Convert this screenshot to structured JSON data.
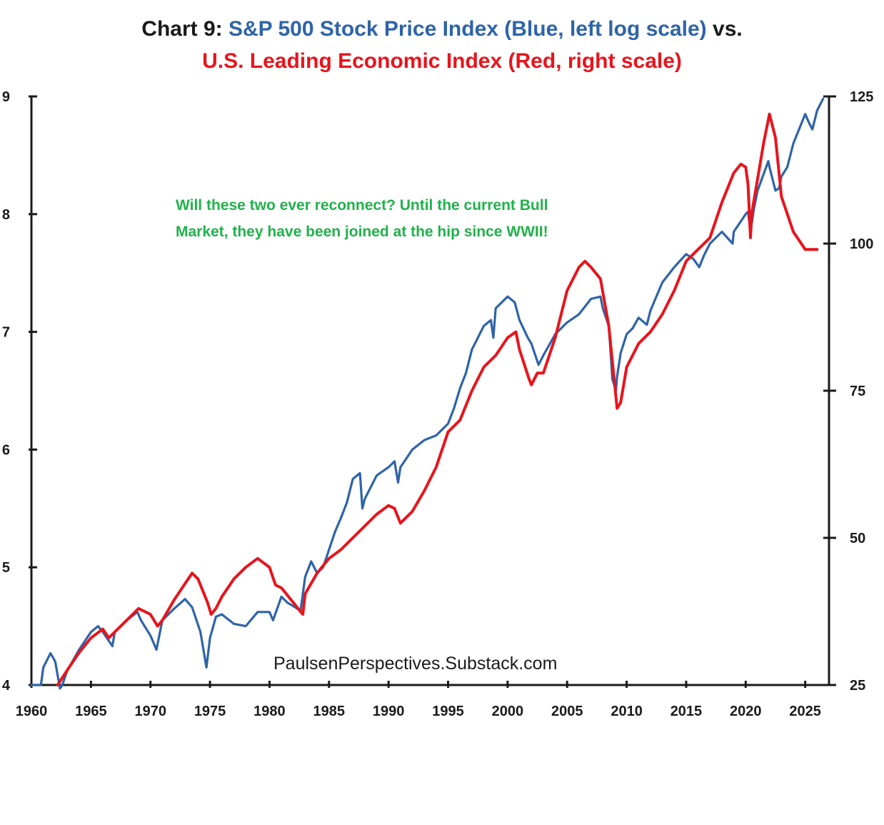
{
  "header": {
    "title_prefix": "Chart 9: ",
    "title_blue": "S&P 500 Stock Price Index (Blue, left log scale)",
    "title_suffix": " vs.",
    "title_red": "U.S. Leading Economic Index (Red, right scale)"
  },
  "annotation": {
    "line1": "Will these two ever reconnect?   Until the current Bull",
    "line2": "Market, they have been joined at the hip since WWII!"
  },
  "source": "PaulsenPerspectives.Substack.com",
  "colors": {
    "sp500": "#2e64a8",
    "lei": "#e8141c",
    "annotation": "#1fb24a",
    "axis": "#1a1a1a"
  },
  "chart_data": {
    "type": "line",
    "x_ticks": [
      "1960",
      "1965",
      "1970",
      "1975",
      "1980",
      "1985",
      "1990",
      "1995",
      "2000",
      "2005",
      "2010",
      "2015",
      "2020",
      "2025"
    ],
    "xlim": [
      1960,
      2027
    ],
    "y_left": {
      "ticks": [
        "4",
        "5",
        "6",
        "7",
        "8",
        "9"
      ],
      "lim": [
        4,
        9
      ],
      "scale": "log"
    },
    "y_right": {
      "ticks": [
        "25",
        "50",
        "75",
        "100",
        "125"
      ],
      "lim": [
        25,
        125
      ]
    },
    "grid": false,
    "series": [
      {
        "axis": "left",
        "color": "#2e64a8",
        "x": [
          1960,
          1960.8,
          1961,
          1961.6,
          1962,
          1962.4,
          1962.6,
          1963,
          1964,
          1965,
          1965.6,
          1966,
          1966.8,
          1967,
          1968,
          1968.9,
          1969.2,
          1970,
          1970.5,
          1970.9,
          1971,
          1972,
          1972.9,
          1973.5,
          1974.2,
          1974.7,
          1975,
          1975.5,
          1976,
          1977,
          1978,
          1979,
          1980,
          1980.3,
          1981,
          1981.5,
          1982,
          1982.6,
          1983,
          1983.5,
          1984,
          1984.5,
          1985,
          1985.5,
          1986,
          1986.5,
          1987,
          1987.6,
          1987.8,
          1988,
          1989,
          1990,
          1990.5,
          1990.8,
          1991,
          1992,
          1993,
          1994,
          1995,
          1995.5,
          1996,
          1996.5,
          1997,
          1998,
          1998.6,
          1998.8,
          1999,
          2000,
          2000.6,
          2001,
          2001.7,
          2002,
          2002.6,
          2003,
          2004,
          2005,
          2006,
          2007,
          2007.8,
          2008,
          2008.5,
          2008.8,
          2009.1,
          2009.2,
          2009.5,
          2010,
          2010.5,
          2011,
          2011.7,
          2012,
          2013,
          2014,
          2015,
          2015.6,
          2016.1,
          2016.5,
          2017,
          2018,
          2018.9,
          2019,
          2020,
          2020.2,
          2020.4,
          2020.7,
          2021,
          2021.9,
          2022,
          2022.5,
          2022.8,
          2023,
          2023.5,
          2024,
          2025,
          2025.3,
          2025.6,
          2026,
          2026.5
        ],
        "values": [
          4.0,
          4.0,
          4.15,
          4.27,
          4.2,
          3.97,
          4.0,
          4.12,
          4.3,
          4.45,
          4.5,
          4.45,
          4.33,
          4.45,
          4.55,
          4.62,
          4.55,
          4.42,
          4.3,
          4.5,
          4.55,
          4.65,
          4.73,
          4.66,
          4.45,
          4.15,
          4.4,
          4.58,
          4.6,
          4.52,
          4.5,
          4.62,
          4.62,
          4.55,
          4.75,
          4.7,
          4.67,
          4.63,
          4.92,
          5.05,
          4.95,
          5.0,
          5.15,
          5.3,
          5.42,
          5.55,
          5.75,
          5.8,
          5.5,
          5.58,
          5.78,
          5.85,
          5.9,
          5.72,
          5.85,
          6.0,
          6.08,
          6.12,
          6.22,
          6.35,
          6.52,
          6.65,
          6.85,
          7.05,
          7.1,
          6.95,
          7.2,
          7.3,
          7.25,
          7.1,
          6.95,
          6.9,
          6.72,
          6.8,
          6.98,
          7.08,
          7.15,
          7.28,
          7.3,
          7.2,
          7.05,
          6.6,
          6.5,
          6.62,
          6.82,
          6.98,
          7.03,
          7.12,
          7.06,
          7.18,
          7.42,
          7.55,
          7.66,
          7.62,
          7.55,
          7.65,
          7.75,
          7.85,
          7.75,
          7.85,
          8.0,
          8.02,
          7.85,
          8.05,
          8.2,
          8.45,
          8.4,
          8.2,
          8.22,
          8.32,
          8.4,
          8.6,
          8.85,
          8.78,
          8.72,
          8.88,
          8.98
        ]
      },
      {
        "axis": "right",
        "color": "#e8141c",
        "x": [
          1962.2,
          1963,
          1964,
          1965,
          1966,
          1966.5,
          1967,
          1968,
          1969,
          1970,
          1970.6,
          1971,
          1972,
          1973,
          1973.5,
          1974,
          1974.8,
          1975.1,
          1975.5,
          1976,
          1977,
          1978,
          1979,
          1980,
          1980.5,
          1981,
          1982,
          1982.8,
          1983,
          1984,
          1985,
          1986,
          1987,
          1988,
          1989,
          1990,
          1990.5,
          1991,
          1992,
          1993,
          1994,
          1995,
          1996,
          1997,
          1998,
          1999,
          2000,
          2000.7,
          2001,
          2001.8,
          2002,
          2002.5,
          2003,
          2004,
          2005,
          2006,
          2006.5,
          2007,
          2007.8,
          2008.5,
          2009.2,
          2009.5,
          2010,
          2011,
          2012,
          2013,
          2014,
          2015,
          2016,
          2017,
          2018,
          2019,
          2019.6,
          2020,
          2020.2,
          2020.4,
          2020.5,
          2021,
          2021.5,
          2022,
          2022.5,
          2023,
          2024,
          2025,
          2026
        ],
        "values": [
          25,
          27.5,
          30.5,
          33,
          34.5,
          33,
          34,
          36,
          38,
          37,
          35,
          36,
          39.5,
          42.5,
          44,
          43,
          39,
          37,
          38,
          40,
          43,
          45,
          46.5,
          45,
          42,
          41.5,
          39,
          37,
          40.5,
          44,
          46.5,
          48,
          50,
          52,
          54,
          55.5,
          55,
          52.5,
          54.5,
          58,
          62,
          68,
          70,
          75,
          79,
          81,
          84,
          85,
          82,
          77,
          76,
          78,
          78,
          84,
          92,
          96,
          97,
          96,
          94,
          86,
          72,
          73,
          79,
          83,
          85,
          88,
          92,
          97,
          99,
          101,
          107,
          112,
          113.5,
          113,
          110,
          101,
          105,
          111,
          117,
          122,
          118,
          108,
          102,
          99,
          99
        ]
      }
    ]
  }
}
